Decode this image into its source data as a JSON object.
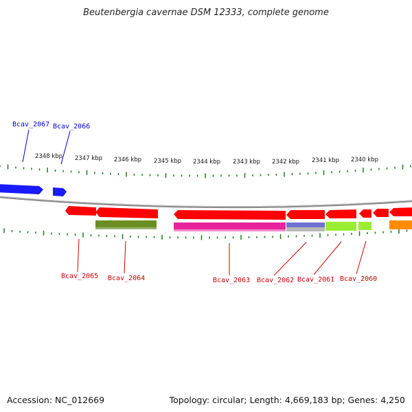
{
  "title": "Beutenbergia cavernae DSM 12333, complete genome",
  "footer": {
    "accession": "Accession: NC_012669",
    "topology": "Topology: circular; Length: 4,669,183 bp; Genes: 4,250"
  },
  "colors": {
    "backbone": "#8a8a8a",
    "ticks": "#1a7a1a",
    "forward_label": "#0000cc",
    "reverse_label": "#cc0000"
  },
  "scale_labels": [
    "2348 kbp",
    "2347 kbp",
    "2346 kbp",
    "2345 kbp",
    "2344 kbp",
    "2343 kbp",
    "2342 kbp",
    "2341 kbp",
    "2340 kbp"
  ],
  "genes": [
    {
      "name": "Bcav_2067",
      "strand": "forward",
      "color": "#1a1aff"
    },
    {
      "name": "Bcav_2066",
      "strand": "forward",
      "color": "#1a1aff"
    },
    {
      "name": "Bcav_2065",
      "strand": "reverse",
      "color": "#ff0000"
    },
    {
      "name": "Bcav_2064",
      "strand": "reverse",
      "color": "#ff0000"
    },
    {
      "name": "Bcav_2063",
      "strand": "reverse",
      "color": "#ff0000"
    },
    {
      "name": "Bcav_2062",
      "strand": "reverse",
      "color": "#ff0000"
    },
    {
      "name": "Bcav_2061",
      "strand": "reverse",
      "color": "#ff0000"
    },
    {
      "name": "Bcav_2060",
      "strand": "reverse",
      "color": "#ff0000"
    }
  ],
  "features": [
    {
      "name": "feature-olive",
      "color": "#6b8e23"
    },
    {
      "name": "feature-magenta",
      "color": "#e6239b"
    },
    {
      "name": "feature-slate",
      "color": "#7070d0"
    },
    {
      "name": "feature-lime",
      "color": "#99ee33"
    },
    {
      "name": "feature-orange",
      "color": "#ff8c00"
    }
  ]
}
